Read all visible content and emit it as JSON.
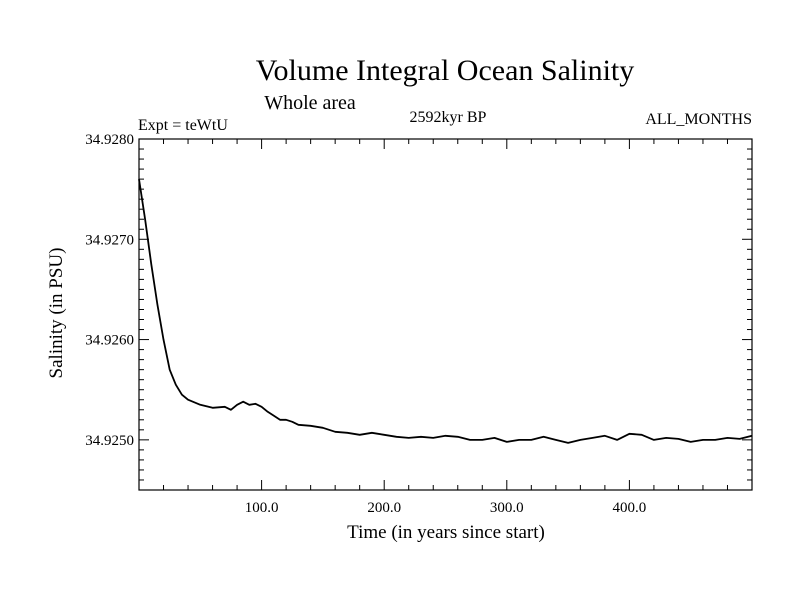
{
  "chart_data": {
    "type": "line",
    "title": "Volume Integral Ocean Salinity",
    "subtitle": "Whole area",
    "annotations": {
      "experiment": "Expt = teWtU",
      "period": "2592kyr BP",
      "months": "ALL_MONTHS"
    },
    "xlabel": "Time (in years since start)",
    "ylabel": "Salinity (in PSU)",
    "xlim": [
      0,
      500
    ],
    "ylim": [
      34.9245,
      34.928
    ],
    "xticks": [
      100,
      200,
      300,
      400
    ],
    "xtick_labels": [
      "100.0",
      "200.0",
      "300.0",
      "400.0"
    ],
    "yticks": [
      34.925,
      34.926,
      34.927,
      34.928
    ],
    "ytick_labels": [
      "34.9250",
      "34.9260",
      "34.9270",
      "34.9280"
    ],
    "grid": false,
    "series": [
      {
        "name": "salinity",
        "color": "#000000",
        "x": [
          0,
          5,
          10,
          15,
          20,
          25,
          30,
          35,
          40,
          50,
          60,
          70,
          75,
          80,
          85,
          90,
          95,
          100,
          105,
          110,
          115,
          120,
          125,
          130,
          140,
          150,
          160,
          170,
          180,
          190,
          200,
          210,
          220,
          230,
          240,
          250,
          260,
          270,
          280,
          290,
          300,
          310,
          320,
          330,
          340,
          350,
          360,
          370,
          380,
          390,
          400,
          410,
          420,
          430,
          440,
          450,
          460,
          470,
          480,
          490,
          500
        ],
        "y": [
          34.9276,
          34.9272,
          34.92675,
          34.92635,
          34.926,
          34.9257,
          34.92555,
          34.92545,
          34.9254,
          34.92535,
          34.92532,
          34.92533,
          34.9253,
          34.92535,
          34.92538,
          34.92535,
          34.92536,
          34.92533,
          34.92528,
          34.92524,
          34.9252,
          34.9252,
          34.92518,
          34.92515,
          34.92514,
          34.92512,
          34.92508,
          34.92507,
          34.92505,
          34.92507,
          34.92505,
          34.92503,
          34.92502,
          34.92503,
          34.92502,
          34.92504,
          34.92503,
          34.925,
          34.925,
          34.92502,
          34.92498,
          34.925,
          34.925,
          34.92503,
          34.925,
          34.92497,
          34.925,
          34.92502,
          34.92504,
          34.925,
          34.92506,
          34.92505,
          34.925,
          34.92502,
          34.92501,
          34.92498,
          34.925,
          34.925,
          34.92502,
          34.92501,
          34.92504
        ]
      }
    ]
  }
}
